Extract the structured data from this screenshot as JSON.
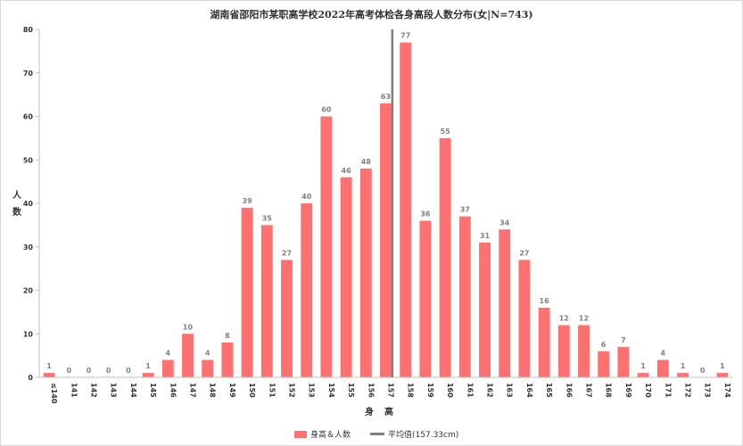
{
  "title": "湖南省邵阳市某职高学校2022年高考体检各身高段人数分布(女|N=743)",
  "chart_data": {
    "type": "bar",
    "title": "湖南省邵阳市某职高学校2022年高考体检各身高段人数分布(女|N=743)",
    "xlabel": "身高",
    "ylabel": "人数",
    "ylim": [
      0,
      80
    ],
    "yticks": [
      0,
      10,
      20,
      30,
      40,
      50,
      60,
      70,
      80
    ],
    "grid": false,
    "legend_position": "bottom",
    "categories": [
      "≤140",
      "141",
      "142",
      "143",
      "144",
      "145",
      "146",
      "147",
      "148",
      "149",
      "150",
      "151",
      "152",
      "153",
      "154",
      "155",
      "156",
      "157",
      "158",
      "159",
      "160",
      "161",
      "162",
      "163",
      "164",
      "165",
      "166",
      "167",
      "168",
      "169",
      "170",
      "171",
      "172",
      "173",
      "174"
    ],
    "series": [
      {
        "name": "身高＆人数",
        "values": [
          1,
          0,
          0,
          0,
          0,
          1,
          4,
          10,
          4,
          8,
          39,
          35,
          27,
          40,
          60,
          46,
          48,
          63,
          77,
          36,
          55,
          37,
          31,
          34,
          27,
          16,
          12,
          12,
          6,
          7,
          1,
          4,
          1,
          0,
          1
        ]
      }
    ],
    "mean_line": {
      "name": "平均值(157.33cm)",
      "x": 157.33
    },
    "colors": {
      "bar": "#ff7070",
      "mean_line": "#7f7f7f",
      "data_label": "#808080"
    }
  }
}
